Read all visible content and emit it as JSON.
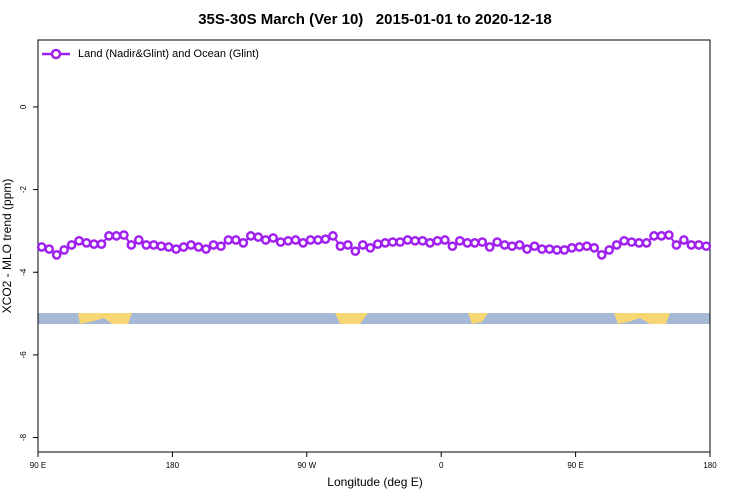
{
  "chart_data": {
    "type": "line",
    "title": "35S-30S March (Ver 10)   2015-01-01 to 2020-12-18",
    "xlabel": "Longitude (deg E)",
    "ylabel": "XCO2 - MLO trend (ppm)",
    "legend": "top-left",
    "xlim": [
      90,
      540
    ],
    "ylim": [
      -8.35,
      1.62
    ],
    "xticks": [
      {
        "value": 90,
        "label": "90 E"
      },
      180,
      {
        "value": 270,
        "label": "90 W"
      },
      {
        "value": 360,
        "label": "0"
      },
      {
        "value": 450,
        "label": "90 E"
      },
      {
        "value": 540,
        "label": "180"
      }
    ],
    "yticks": [
      0,
      -2,
      -4,
      -6,
      -8
    ],
    "x": [
      92.5,
      97.5,
      102.5,
      107.5,
      112.5,
      117.5,
      122.5,
      127.5,
      132.5,
      137.5,
      142.5,
      147.5,
      152.5,
      157.5,
      162.5,
      167.5,
      172.5,
      177.5,
      182.5,
      187.5,
      192.5,
      197.5,
      202.5,
      207.5,
      212.5,
      217.5,
      222.5,
      227.5,
      232.5,
      237.5,
      242.5,
      247.5,
      252.5,
      257.5,
      262.5,
      267.5,
      272.5,
      277.5,
      282.5,
      287.5,
      292.5,
      297.5,
      302.5,
      307.5,
      312.5,
      317.5,
      322.5,
      327.5,
      332.5,
      337.5,
      342.5,
      347.5,
      352.5,
      357.5,
      362.5,
      367.5,
      372.5,
      377.5,
      382.5,
      387.5,
      392.5,
      397.5,
      402.5,
      407.5,
      412.5,
      417.5,
      422.5,
      427.5,
      432.5,
      437.5,
      442.5,
      447.5,
      452.5,
      457.5,
      462.5,
      467.5,
      472.5,
      477.5,
      482.5,
      487.5,
      492.5,
      497.5,
      502.5,
      507.5,
      512.5,
      517.5,
      522.5,
      527.5,
      532.5,
      537.5
    ],
    "series": [
      {
        "name": "Land (Nadir&Glint) and Ocean (Glint)",
        "color": "#a020f0",
        "values": [
          -3.39,
          -3.44,
          -3.58,
          -3.46,
          -3.34,
          -3.24,
          -3.29,
          -3.32,
          -3.32,
          -3.12,
          -3.12,
          -3.1,
          -3.34,
          -3.22,
          -3.34,
          -3.34,
          -3.37,
          -3.39,
          -3.44,
          -3.39,
          -3.34,
          -3.39,
          -3.44,
          -3.34,
          -3.37,
          -3.22,
          -3.22,
          -3.29,
          -3.12,
          -3.15,
          -3.22,
          -3.17,
          -3.27,
          -3.24,
          -3.22,
          -3.29,
          -3.22,
          -3.22,
          -3.2,
          -3.12,
          -3.37,
          -3.34,
          -3.49,
          -3.34,
          -3.41,
          -3.32,
          -3.29,
          -3.27,
          -3.27,
          -3.22,
          -3.24,
          -3.24,
          -3.29,
          -3.24,
          -3.22,
          -3.37,
          -3.24,
          -3.29,
          -3.29,
          -3.27,
          -3.39,
          -3.27,
          -3.34,
          -3.37,
          -3.34,
          -3.44,
          -3.37,
          -3.44,
          -3.44,
          -3.46,
          -3.46,
          -3.41,
          -3.39,
          -3.37,
          -3.41,
          -3.58,
          -3.46,
          -3.34,
          -3.24,
          -3.27,
          -3.29,
          -3.29,
          -3.12,
          -3.12,
          -3.1,
          -3.34,
          -3.22,
          -3.34,
          -3.34,
          -3.37
        ]
      }
    ]
  }
}
